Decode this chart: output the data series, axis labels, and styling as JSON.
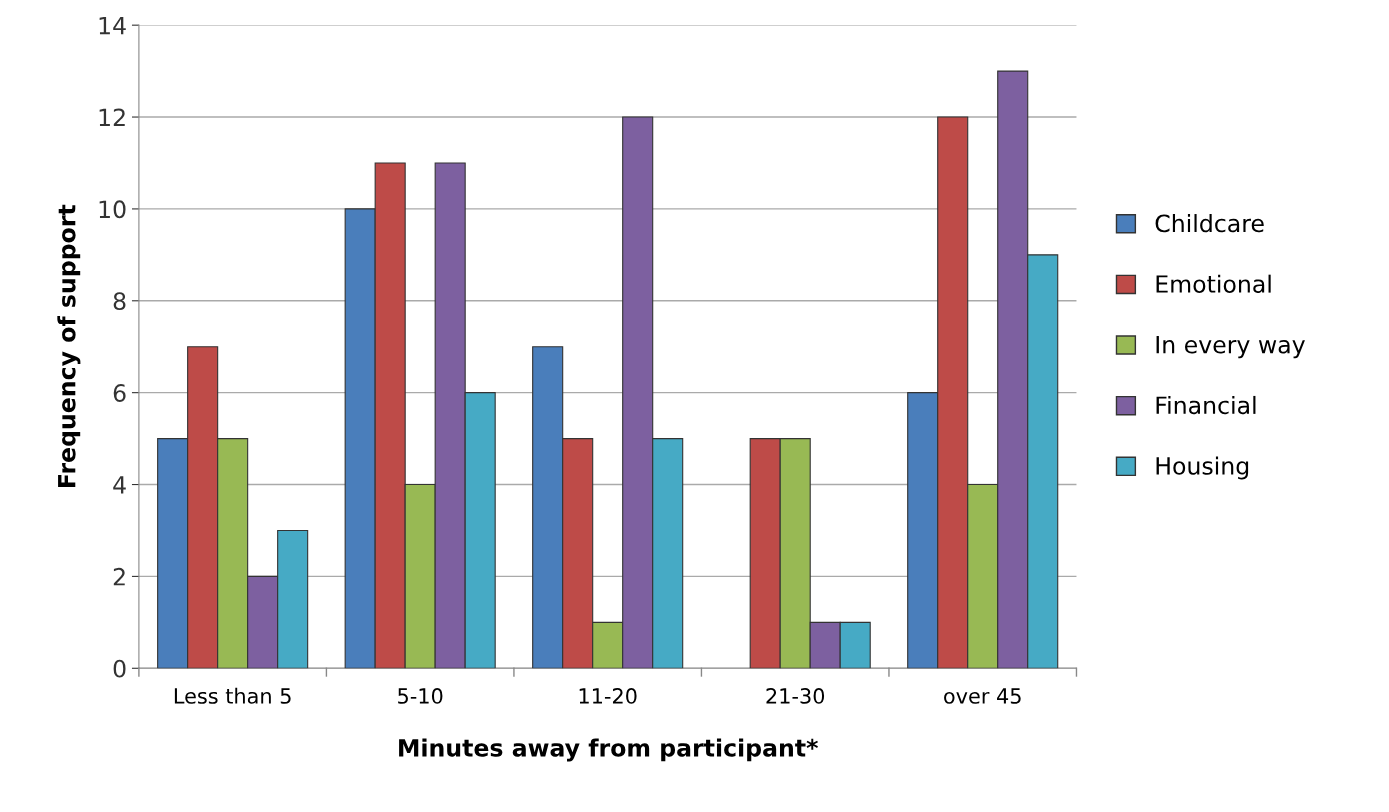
{
  "chart_data": {
    "type": "bar",
    "xlabel": "Minutes away from participant*",
    "ylabel": "Frequency of support",
    "categories": [
      "Less than 5",
      "5-10",
      "11-20",
      "21-30",
      "over 45"
    ],
    "series": [
      {
        "name": "Childcare",
        "color": "#4a7ebb",
        "values": [
          5,
          10,
          7,
          0,
          6
        ]
      },
      {
        "name": "Emotional",
        "color": "#be4b48",
        "values": [
          7,
          11,
          5,
          5,
          12
        ]
      },
      {
        "name": "In every way",
        "color": "#98b954",
        "values": [
          5,
          4,
          1,
          5,
          4
        ]
      },
      {
        "name": "Financial",
        "color": "#7d60a0",
        "values": [
          2,
          11,
          12,
          1,
          13
        ]
      },
      {
        "name": "Housing",
        "color": "#46aac5",
        "values": [
          3,
          6,
          5,
          1,
          9
        ]
      }
    ],
    "ylim": [
      0,
      14
    ],
    "yticks": [
      0,
      2,
      4,
      6,
      8,
      10,
      12,
      14
    ],
    "grid": "y",
    "legend": "right"
  }
}
